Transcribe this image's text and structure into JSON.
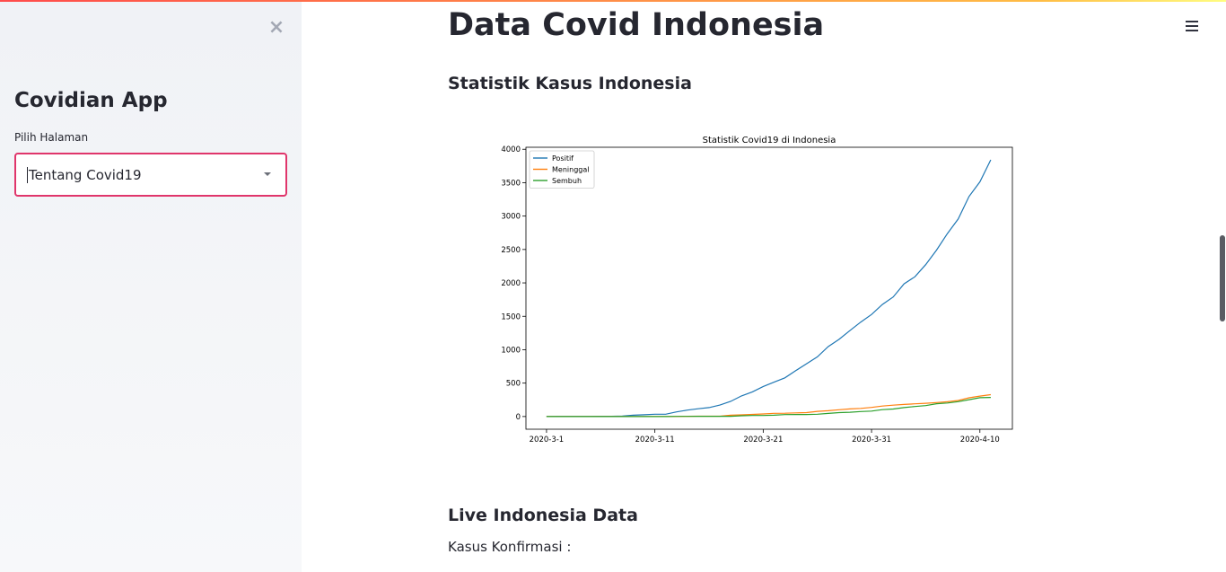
{
  "sidebar": {
    "title": "Covidian App",
    "select_label": "Pilih Halaman",
    "select_value": "Tentang Covid19"
  },
  "main": {
    "title": "Data Covid Indonesia",
    "section_stats": "Statistik Kasus Indonesia",
    "section_live": "Live Indonesia Data",
    "confirmed_label": "Kasus Konfirmasi :"
  },
  "chart_data": {
    "type": "line",
    "title": "Statistik Covid19 di Indonesia",
    "xlabel": "",
    "ylabel": "",
    "x_ticks": [
      "2020-3-1",
      "2020-3-11",
      "2020-3-21",
      "2020-3-31",
      "2020-4-10"
    ],
    "x_tick_days": [
      1,
      11,
      21,
      31,
      41
    ],
    "xlim": [
      -0.9,
      44
    ],
    "ylim": [
      -190,
      4030
    ],
    "y_ticks": [
      0,
      500,
      1000,
      1500,
      2000,
      2500,
      3000,
      3500,
      4000
    ],
    "grid": false,
    "legend_position": "top-left",
    "series": [
      {
        "name": "Positif",
        "color": "#1f77b4",
        "x": [
          1,
          2,
          3,
          4,
          5,
          6,
          7,
          8,
          9,
          10,
          11,
          12,
          13,
          14,
          15,
          16,
          17,
          18,
          19,
          20,
          21,
          22,
          23,
          24,
          25,
          26,
          27,
          28,
          29,
          30,
          31,
          32,
          33,
          34,
          35,
          36,
          37,
          38,
          39,
          40,
          41,
          42
        ],
        "values": [
          0,
          2,
          2,
          2,
          2,
          4,
          4,
          6,
          19,
          27,
          34,
          34,
          69,
          96,
          117,
          134,
          172,
          227,
          309,
          369,
          450,
          514,
          579,
          686,
          790,
          893,
          1046,
          1155,
          1285,
          1414,
          1528,
          1677,
          1790,
          1986,
          2092,
          2273,
          2491,
          2738,
          2956,
          3293,
          3512,
          3842
        ]
      },
      {
        "name": "Meninggal",
        "color": "#ff7f0e",
        "x": [
          1,
          2,
          3,
          4,
          5,
          6,
          7,
          8,
          9,
          10,
          11,
          12,
          13,
          14,
          15,
          16,
          17,
          18,
          19,
          20,
          21,
          22,
          23,
          24,
          25,
          26,
          27,
          28,
          29,
          30,
          31,
          32,
          33,
          34,
          35,
          36,
          37,
          38,
          39,
          40,
          41,
          42
        ],
        "values": [
          0,
          0,
          0,
          0,
          0,
          0,
          0,
          0,
          0,
          0,
          1,
          1,
          1,
          4,
          5,
          5,
          5,
          19,
          25,
          32,
          38,
          48,
          49,
          55,
          58,
          78,
          87,
          102,
          114,
          122,
          136,
          157,
          170,
          181,
          191,
          198,
          209,
          221,
          240,
          280,
          306,
          327
        ]
      },
      {
        "name": "Sembuh",
        "color": "#2ca02c",
        "x": [
          1,
          2,
          3,
          4,
          5,
          6,
          7,
          8,
          9,
          10,
          11,
          12,
          13,
          14,
          15,
          16,
          17,
          18,
          19,
          20,
          21,
          22,
          23,
          24,
          25,
          26,
          27,
          28,
          29,
          30,
          31,
          32,
          33,
          34,
          35,
          36,
          37,
          38,
          39,
          40,
          41,
          42
        ],
        "values": [
          0,
          0,
          0,
          0,
          0,
          0,
          0,
          0,
          0,
          0,
          0,
          0,
          2,
          2,
          3,
          3,
          3,
          3,
          11,
          15,
          15,
          20,
          29,
          30,
          31,
          35,
          46,
          59,
          64,
          75,
          81,
          103,
          112,
          134,
          150,
          164,
          192,
          202,
          222,
          252,
          282,
          286
        ]
      }
    ]
  }
}
